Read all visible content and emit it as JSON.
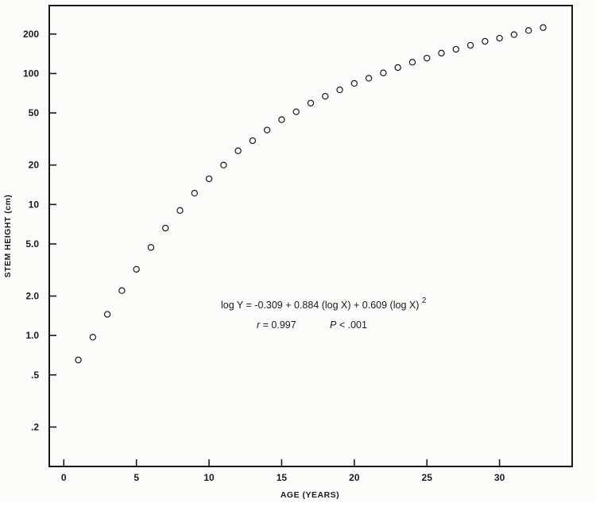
{
  "chart_data": {
    "type": "scatter",
    "title": "",
    "xlabel": "AGE (YEARS)",
    "ylabel": "STEM HEIGHT (cm)",
    "xlim": [
      -1,
      35
    ],
    "ylim": [
      0.1,
      330
    ],
    "yscale": "log",
    "grid": false,
    "legend": "none",
    "marker": "open-circle",
    "x_ticks": [
      "0",
      "5",
      "10",
      "15",
      "20",
      "25",
      "30"
    ],
    "x_tick_values": [
      0,
      5,
      10,
      15,
      20,
      25,
      30
    ],
    "y_ticks": [
      ".2",
      ".5",
      "1.0",
      "2.0",
      "5.0",
      "10",
      "20",
      "50",
      "100",
      "200"
    ],
    "y_tick_values": [
      0.2,
      0.5,
      1,
      2,
      5,
      10,
      20,
      50,
      100,
      200
    ],
    "x": [
      1,
      2,
      3,
      4,
      5,
      6,
      7,
      8,
      9,
      10,
      11,
      12,
      13,
      14,
      15,
      16,
      17,
      18,
      19,
      20,
      21,
      22,
      23,
      24,
      25,
      26,
      27,
      28,
      29,
      30,
      31,
      32,
      33
    ],
    "y": [
      0.65,
      0.97,
      1.45,
      2.2,
      3.2,
      4.7,
      6.6,
      9.0,
      12.2,
      15.7,
      20,
      25.7,
      30.7,
      37,
      44.4,
      51,
      59.4,
      67,
      75,
      84,
      92,
      101,
      111,
      122,
      131,
      143,
      153,
      164,
      176,
      186,
      198,
      213,
      224
    ],
    "annotations": {
      "equation": {
        "prefix": "log Y = ",
        "body": "-0.309 + 0.884 (log X) + 0.609 (log X)",
        "exponent": "2"
      },
      "stats": {
        "r_symbol": "r",
        "r_value": " = 0.997",
        "p_symbol": "P",
        "p_value": " < .001"
      }
    }
  },
  "colors": {
    "ink": "#1a1a1a",
    "background": "#fcfcfa"
  }
}
